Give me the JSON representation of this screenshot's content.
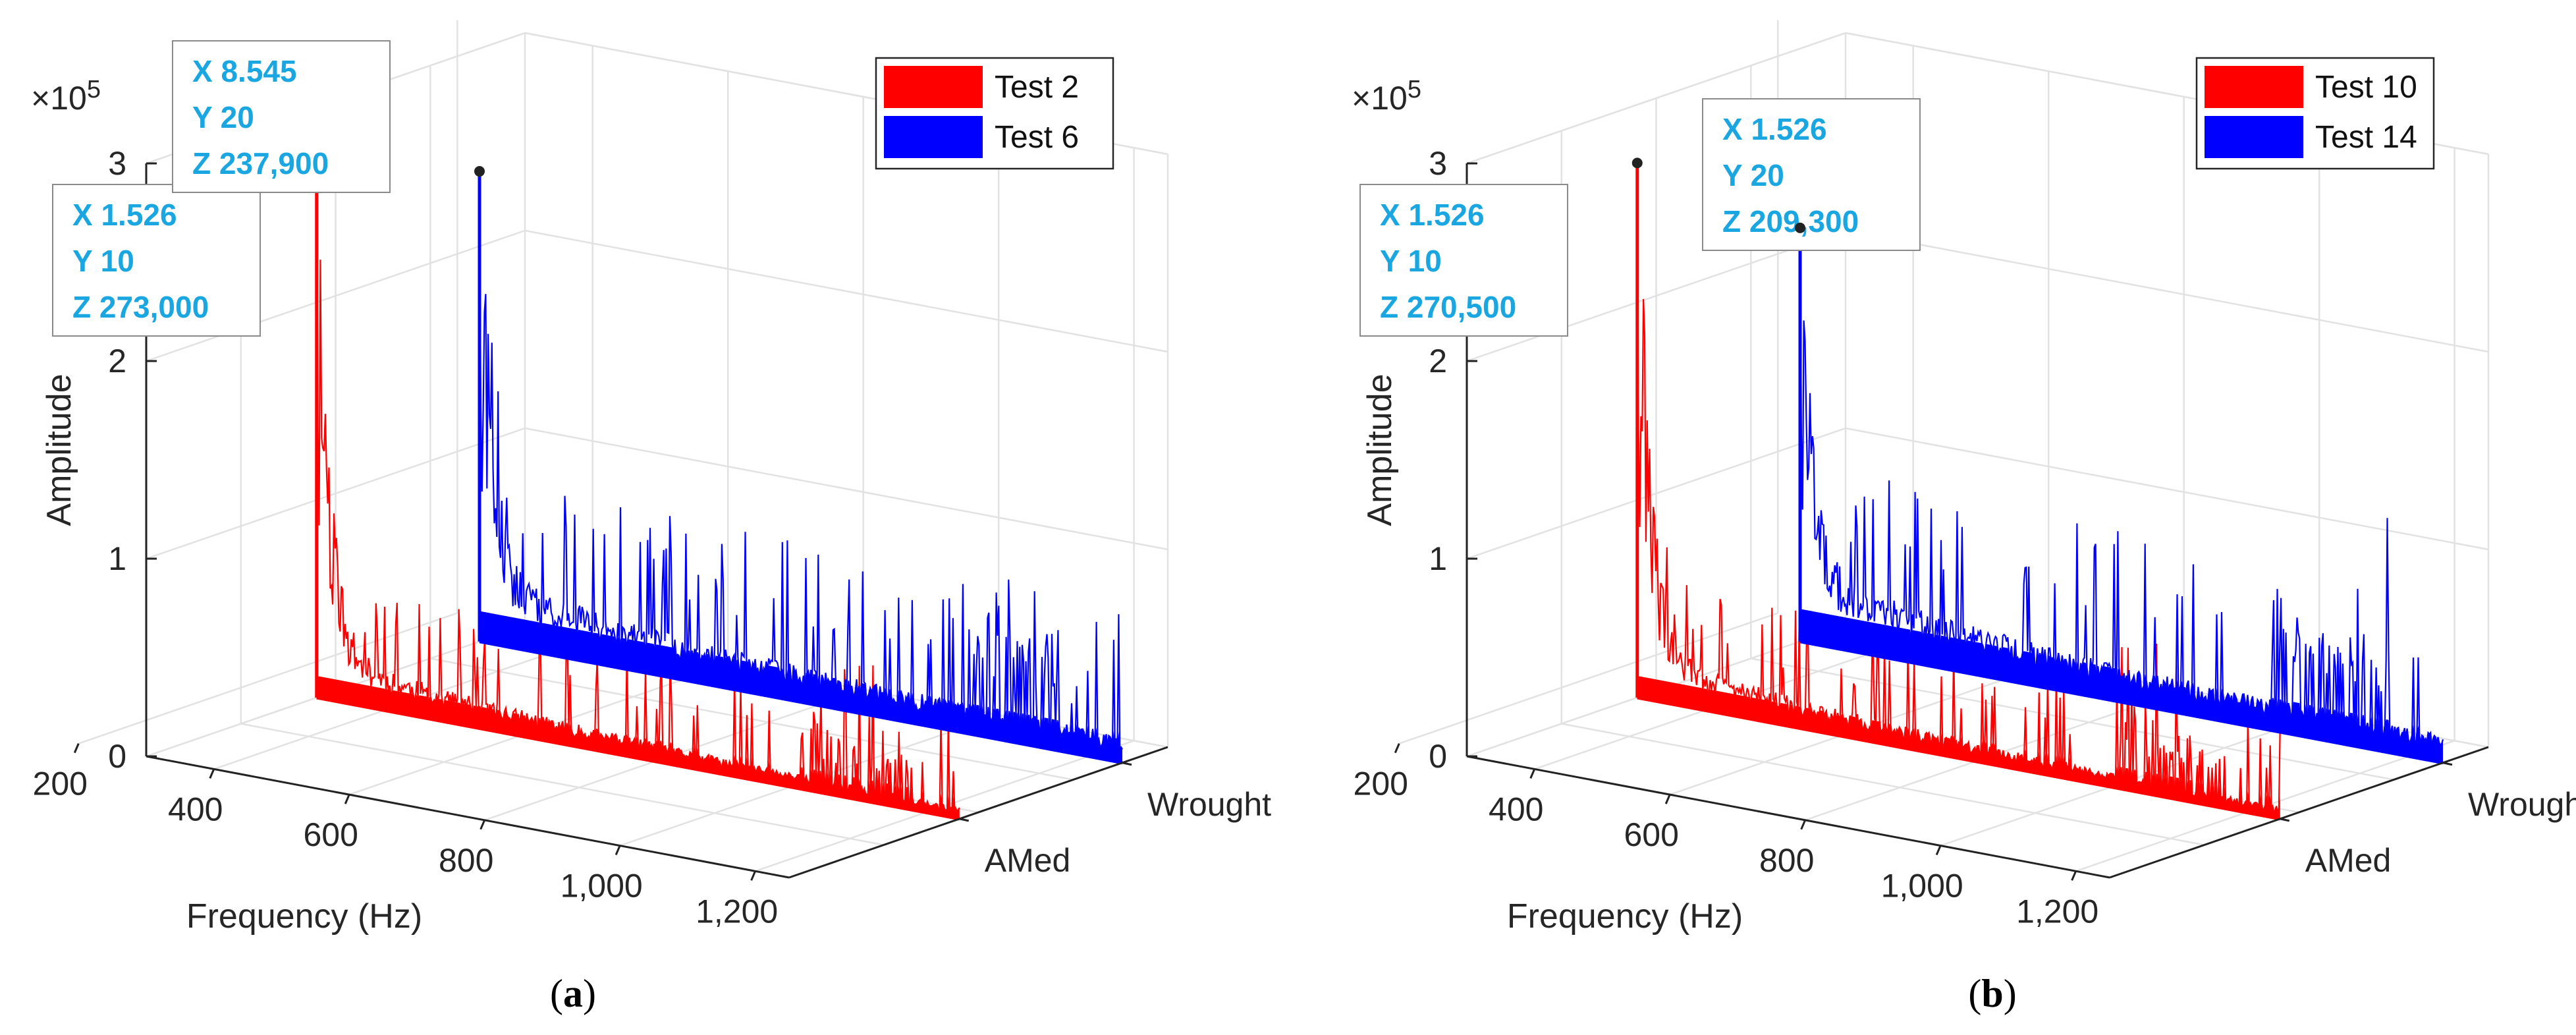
{
  "colors": {
    "series_red": "#ff0000",
    "series_blue": "#0000ff",
    "tip_text": "#1aa6e0"
  },
  "chart_data": [
    {
      "panel_label": "a",
      "type": "bar",
      "zlabel": "Amplitude",
      "xlabel": "Frequency (Hz)",
      "y_categories": [
        "AMed",
        "Wrought"
      ],
      "exponent_label": "×10",
      "exponent_value": "5",
      "z_ticks": [
        "0",
        "1",
        "2",
        "3"
      ],
      "z_tick_values": [
        0,
        100000,
        200000,
        300000
      ],
      "x_ticks": [
        "200",
        "400",
        "600",
        "800",
        "1,000",
        "1,200"
      ],
      "x_tick_values": [
        200,
        400,
        600,
        800,
        1000,
        1200
      ],
      "legend_position": "top-right",
      "grid": true,
      "series": [
        {
          "name": "Test 2",
          "color": "#ff0000",
          "y_category": "AMed",
          "peak_z": 273000,
          "floor_z": 20000,
          "tail_z": 4000
        },
        {
          "name": "Test 6",
          "color": "#0000ff",
          "y_category": "Wrought",
          "peak_z": 237900,
          "floor_z": 28000,
          "tail_z": 10000
        }
      ],
      "datatips": [
        {
          "x_text": "X 1.526",
          "y_text": "Y 10",
          "z_text": "Z 273,000",
          "series": 0
        },
        {
          "x_text": "X 8.545",
          "y_text": "Y 20",
          "z_text": "Z 237,900",
          "series": 1
        }
      ]
    },
    {
      "panel_label": "b",
      "type": "bar",
      "zlabel": "Amplitude",
      "xlabel": "Frequency (Hz)",
      "y_categories": [
        "AMed",
        "Wrought"
      ],
      "exponent_label": "×10",
      "exponent_value": "5",
      "z_ticks": [
        "0",
        "1",
        "2",
        "3"
      ],
      "z_tick_values": [
        0,
        100000,
        200000,
        300000
      ],
      "x_ticks": [
        "200",
        "400",
        "600",
        "800",
        "1,000",
        "1,200"
      ],
      "x_tick_values": [
        200,
        400,
        600,
        800,
        1000,
        1200
      ],
      "legend_position": "top-right",
      "grid": true,
      "series": [
        {
          "name": "Test 10",
          "color": "#ff0000",
          "y_category": "AMed",
          "peak_z": 270500,
          "floor_z": 20000,
          "tail_z": 4000
        },
        {
          "name": "Test 14",
          "color": "#0000ff",
          "y_category": "Wrought",
          "peak_z": 209300,
          "floor_z": 30000,
          "tail_z": 10000
        }
      ],
      "datatips": [
        {
          "x_text": "X 1.526",
          "y_text": "Y 10",
          "z_text": "Z 270,500",
          "series": 0
        },
        {
          "x_text": "X 1.526",
          "y_text": "Y 20",
          "z_text": "Z 209,300",
          "series": 1
        }
      ]
    }
  ]
}
